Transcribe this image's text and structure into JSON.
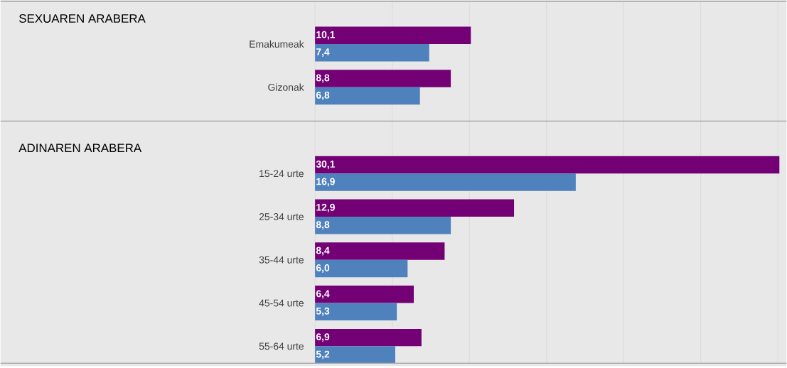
{
  "chart_data": {
    "type": "bar",
    "orientation": "horizontal",
    "annotations": [
      "SEXUAREN ARABERA",
      "ADINAREN ARABERA"
    ],
    "categories": [
      "Emakumeak",
      "Gizonak",
      null,
      "15-24 urte",
      "25-34 urte",
      "35-44 urte",
      "45-54 urte",
      "55-64 urte"
    ],
    "series": [
      {
        "color": "#730075",
        "values": [
          10.1,
          8.8,
          null,
          30.1,
          12.9,
          8.4,
          6.4,
          6.9
        ],
        "value_labels": [
          "10,1",
          "8,8",
          null,
          "30,1",
          "12,9",
          "8,4",
          "6,4",
          "6,9"
        ]
      },
      {
        "color": "#4f81bd",
        "values": [
          7.4,
          6.8,
          null,
          16.9,
          8.8,
          6.0,
          5.3,
          5.2
        ],
        "value_labels": [
          "7,4",
          "6,8",
          null,
          "16,9",
          "8,8",
          "6,0",
          "5,3",
          "5,2"
        ]
      }
    ],
    "xlim": [
      0,
      30.1
    ],
    "xticks": [
      {
        "value": 0,
        "label": null
      },
      {
        "value": 5,
        "label": null
      },
      {
        "value": 10,
        "label": null
      },
      {
        "value": 15,
        "label": null
      },
      {
        "value": 20,
        "label": null
      },
      {
        "value": 25,
        "label": null
      },
      {
        "value": 30,
        "label": null
      }
    ],
    "grid": "x",
    "tick_labels": "y"
  }
}
